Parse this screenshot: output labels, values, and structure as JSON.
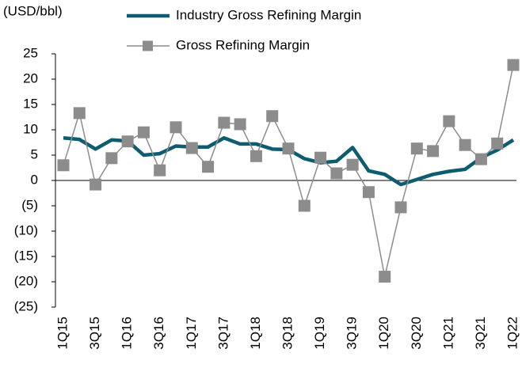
{
  "chart_data": {
    "type": "line",
    "y_label": "(USD/bbl)",
    "categories": [
      "1Q15",
      null,
      "3Q15",
      null,
      "1Q16",
      null,
      "3Q16",
      null,
      "1Q17",
      null,
      "3Q17",
      null,
      "1Q18",
      null,
      "3Q18",
      null,
      "1Q19",
      null,
      "3Q19",
      null,
      "1Q20",
      null,
      "3Q20",
      null,
      "1Q21",
      null,
      "3Q21",
      null,
      "1Q22"
    ],
    "series": [
      {
        "name": "Industry Gross Refining Margin",
        "color": "#0d5c70",
        "marker": "none",
        "values": [
          8.4,
          8.1,
          6.2,
          8.0,
          7.8,
          5.0,
          5.3,
          6.8,
          6.6,
          6.6,
          8.4,
          7.2,
          7.2,
          6.2,
          6.1,
          4.3,
          3.5,
          3.8,
          6.5,
          1.9,
          1.2,
          -0.8,
          0.2,
          1.2,
          1.8,
          2.2,
          4.5,
          6.0,
          8.0
        ]
      },
      {
        "name": "Gross Refining Margin",
        "color": "#8c8c8c",
        "marker": "square",
        "values": [
          3.0,
          13.3,
          -0.8,
          4.4,
          7.7,
          9.5,
          2.0,
          10.5,
          6.4,
          2.7,
          11.4,
          11.1,
          4.8,
          12.7,
          6.3,
          -5.0,
          4.5,
          1.4,
          3.1,
          -2.3,
          -19.0,
          -5.3,
          6.3,
          5.8,
          11.7,
          7.0,
          4.2,
          7.3,
          22.8
        ]
      }
    ],
    "ylim": [
      -25,
      25
    ],
    "yticks": [
      25,
      20,
      15,
      10,
      5,
      0,
      {
        "value": -5,
        "label": "(5)"
      },
      {
        "value": -10,
        "label": "(10)"
      },
      {
        "value": -15,
        "label": "(15)"
      },
      {
        "value": -20,
        "label": "(20)"
      },
      {
        "value": -25,
        "label": "(25)"
      }
    ],
    "grid": false
  }
}
